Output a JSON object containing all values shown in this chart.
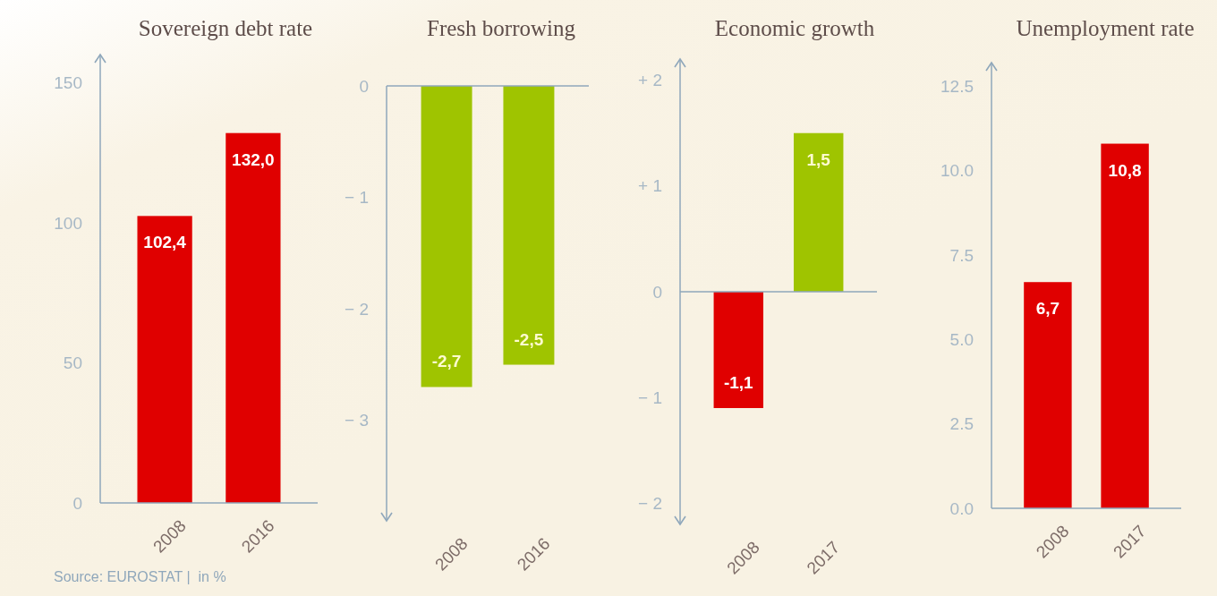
{
  "chart_data": [
    {
      "type": "bar",
      "title": "Sovereign debt rate",
      "categories": [
        "2008",
        "2016"
      ],
      "values": [
        102.4,
        132.0
      ],
      "value_labels": [
        "102,4",
        "132,0"
      ],
      "color": "#e00000",
      "ylim": [
        0,
        160
      ],
      "yticks": [
        0,
        50,
        100,
        150
      ],
      "annotations": [
        "Source: EUROSTAT |  in %"
      ]
    },
    {
      "type": "bar",
      "title": "Fresh borrowing",
      "categories": [
        "2008",
        "2016"
      ],
      "values": [
        -2.7,
        -2.5
      ],
      "value_labels": [
        "-2,7",
        "-2,5"
      ],
      "color": "#9fc400",
      "ylim": [
        -3.9,
        0
      ],
      "yticks": [
        {
          "value": -3,
          "label": "− 3"
        },
        {
          "value": -2,
          "label": "− 2"
        },
        {
          "value": -1,
          "label": "− 1"
        },
        0
      ]
    },
    {
      "type": "bar",
      "title": "Economic growth",
      "categories": [
        "2008",
        "2017"
      ],
      "values": [
        -1.1,
        1.5
      ],
      "value_labels": [
        "-1,1",
        "1,5"
      ],
      "colors": [
        "#e00000",
        "#9fc400"
      ],
      "ref_lines": [
        {
          "axis": "y",
          "value": 0
        }
      ],
      "ylim": [
        -2.2,
        2.2
      ],
      "yticks": [
        {
          "value": -2,
          "label": "− 2"
        },
        {
          "value": -1,
          "label": "− 1"
        },
        0,
        {
          "value": 1,
          "label": "+ 1"
        },
        {
          "value": 2,
          "label": "+ 2"
        }
      ]
    },
    {
      "type": "bar",
      "title": "Unemployment rate",
      "categories": [
        "2008",
        "2017"
      ],
      "values": [
        6.7,
        10.8
      ],
      "value_labels": [
        "6,7",
        "10,8"
      ],
      "color": "#e00000",
      "ylim": [
        0,
        13.2
      ],
      "yticks": [
        {
          "value": 0,
          "label": "0.0"
        },
        {
          "value": 2.5,
          "label": "2.5"
        },
        {
          "value": 5,
          "label": "5.0"
        },
        {
          "value": 7.5,
          "label": "7.5"
        },
        {
          "value": 10,
          "label": "10.0"
        },
        {
          "value": 12.5,
          "label": "12.5"
        }
      ]
    }
  ]
}
